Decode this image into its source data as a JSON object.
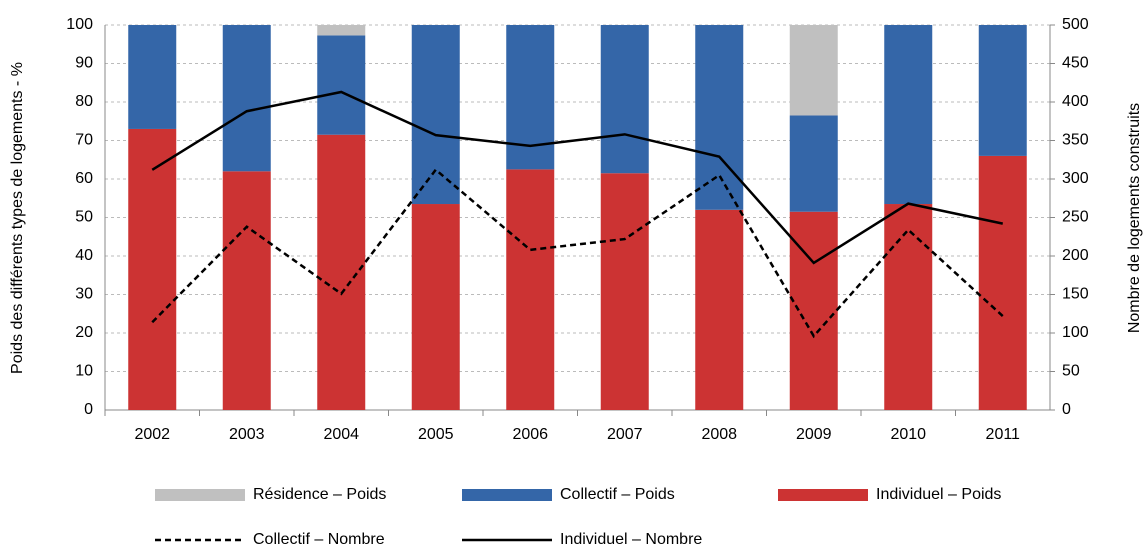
{
  "chart_data": {
    "type": "bar",
    "categories": [
      "2002",
      "2003",
      "2004",
      "2005",
      "2006",
      "2007",
      "2008",
      "2009",
      "2010",
      "2011"
    ],
    "ylabel": "Poids des différents types de logements - %",
    "y2label": "Nombre de logements construits",
    "ylim": [
      0,
      100
    ],
    "yticks": [
      0,
      10,
      20,
      30,
      40,
      50,
      60,
      70,
      80,
      90,
      100
    ],
    "y2lim": [
      0,
      500
    ],
    "y2ticks": [
      0,
      50,
      100,
      150,
      200,
      250,
      300,
      350,
      400,
      450,
      500
    ],
    "grid": true,
    "stacked": true,
    "legend": "bottom",
    "series": [
      {
        "name": "Individuel – Poids",
        "color": "#cc3333",
        "values": [
          73,
          62,
          71.5,
          53.5,
          62.5,
          61.5,
          52,
          51.5,
          53.5,
          66
        ]
      },
      {
        "name": "Collectif – Poids",
        "color": "#3466a8",
        "values": [
          27,
          38,
          25.8,
          46.5,
          37.5,
          38.5,
          48,
          25,
          46.5,
          34
        ]
      },
      {
        "name": "Résidence – Poids",
        "color": "#c0c0c0",
        "values": [
          0,
          0,
          2.7,
          0,
          0,
          0,
          0,
          23.5,
          0,
          0
        ]
      },
      {
        "name": "Collectif – Nombre",
        "color": "#000000",
        "type": "line",
        "dash": true,
        "axis": "y2",
        "values": [
          114,
          238,
          151,
          312,
          208,
          222,
          305,
          96,
          234,
          122
        ]
      },
      {
        "name": "Individuel – Nombre",
        "color": "#000000",
        "type": "line",
        "dash": false,
        "axis": "y2",
        "values": [
          312,
          388,
          413,
          357,
          343,
          358,
          329,
          191,
          268,
          242
        ]
      }
    ]
  }
}
